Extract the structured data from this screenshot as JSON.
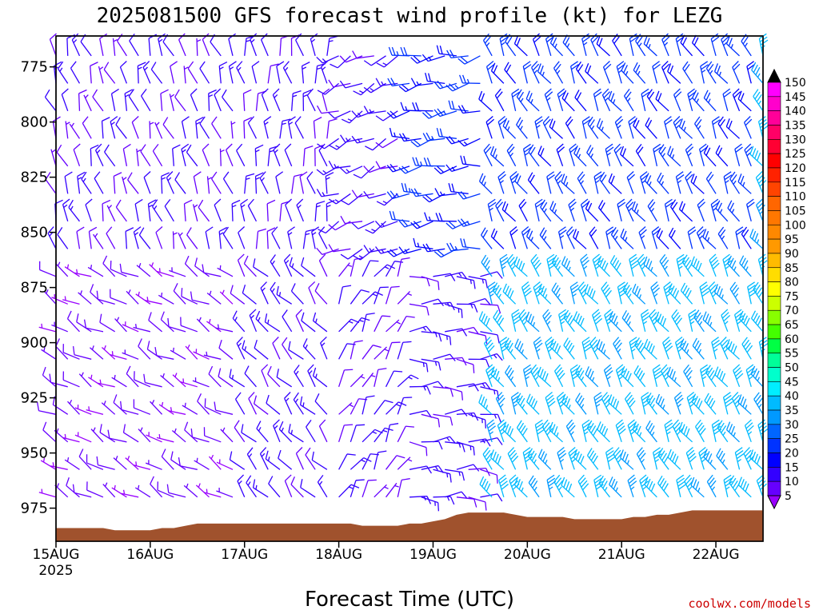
{
  "chart_data": {
    "type": "wind-barb-time-height",
    "title": "2025081500 GFS forecast wind profile (kt) for LEZG",
    "xlabel": "Forecast Time (UTC)",
    "credit": "coolwx.com/models",
    "x_ticks": [
      {
        "label": "15AUG",
        "sublabel": "2025",
        "day": 0
      },
      {
        "label": "16AUG",
        "sublabel": "",
        "day": 1
      },
      {
        "label": "17AUG",
        "sublabel": "",
        "day": 2
      },
      {
        "label": "18AUG",
        "sublabel": "",
        "day": 3
      },
      {
        "label": "19AUG",
        "sublabel": "",
        "day": 4
      },
      {
        "label": "20AUG",
        "sublabel": "",
        "day": 5
      },
      {
        "label": "21AUG",
        "sublabel": "",
        "day": 6
      },
      {
        "label": "22AUG",
        "sublabel": "",
        "day": 7
      }
    ],
    "xlim_days": [
      0,
      7.5
    ],
    "y_ticks": [
      775,
      800,
      825,
      850,
      875,
      900,
      925,
      950,
      975
    ],
    "ylim_hPa": [
      990,
      761
    ],
    "time_step_hours": 3,
    "pressure_levels": [
      770,
      782.5,
      795,
      807.5,
      820,
      832.5,
      845,
      857.5,
      870,
      882.5,
      895,
      907.5,
      920,
      932.5,
      945,
      957.5,
      970
    ],
    "terrain_surface_hPa": [
      984,
      984,
      984,
      984,
      984,
      985,
      985,
      985,
      985,
      984,
      984,
      983,
      982,
      982,
      982,
      982,
      982,
      982,
      982,
      982,
      982,
      982,
      982,
      982,
      982,
      982,
      983,
      983,
      983,
      983,
      982,
      982,
      981,
      980,
      978,
      977,
      977,
      977,
      977,
      978,
      979,
      979,
      979,
      979,
      980,
      980,
      980,
      980,
      980,
      979,
      979,
      978,
      978,
      977,
      976,
      976,
      976,
      976,
      976,
      976,
      976,
      976,
      976,
      976,
      976,
      976,
      976,
      976,
      975,
      973,
      972,
      973,
      975,
      976,
      976,
      976,
      976,
      976,
      976,
      976,
      976,
      976,
      976,
      975,
      976,
      976,
      976,
      976,
      976,
      976,
      976,
      975,
      974,
      974,
      974,
      975,
      976,
      977,
      978,
      978,
      978,
      978,
      978,
      978,
      978,
      978,
      978,
      978,
      978,
      978,
      978,
      978,
      978,
      978,
      978,
      978,
      978,
      978,
      978,
      978,
      977,
      977,
      978,
      978,
      978,
      978,
      978,
      978,
      978,
      978,
      978,
      978,
      978,
      978,
      978,
      978,
      978,
      978,
      978,
      978,
      978,
      978,
      978,
      978,
      978,
      978,
      978,
      978,
      978,
      978,
      978,
      978,
      978,
      978,
      978,
      978,
      978
    ],
    "regimes": [
      {
        "from_day": 0.0,
        "to_day": 2.0,
        "level_group": "upper",
        "direction_deg": 340,
        "speed_kt": 10
      },
      {
        "from_day": 0.0,
        "to_day": 2.0,
        "level_group": "lower",
        "direction_deg": 300,
        "speed_kt": 7
      },
      {
        "from_day": 2.0,
        "to_day": 3.0,
        "level_group": "upper",
        "direction_deg": 350,
        "speed_kt": 12
      },
      {
        "from_day": 2.0,
        "to_day": 3.0,
        "level_group": "lower",
        "direction_deg": 320,
        "speed_kt": 12
      },
      {
        "from_day": 3.0,
        "to_day": 3.75,
        "level_group": "upper",
        "direction_deg": 245,
        "speed_kt": 12
      },
      {
        "from_day": 3.0,
        "to_day": 3.75,
        "level_group": "lower",
        "direction_deg": 30,
        "speed_kt": 10
      },
      {
        "from_day": 3.75,
        "to_day": 4.6,
        "level_group": "upper",
        "direction_deg": 260,
        "speed_kt": 20
      },
      {
        "from_day": 3.75,
        "to_day": 4.6,
        "level_group": "lower",
        "direction_deg": 90,
        "speed_kt": 12
      },
      {
        "from_day": 4.6,
        "to_day": 7.5,
        "level_group": "upper",
        "direction_deg": 330,
        "speed_kt": 22
      },
      {
        "from_day": 4.6,
        "to_day": 7.5,
        "level_group": "lower",
        "direction_deg": 330,
        "speed_kt": 37
      }
    ],
    "colorbar": {
      "min": 5,
      "max": 150,
      "step": 5,
      "labels": [
        150,
        145,
        140,
        135,
        130,
        125,
        120,
        115,
        110,
        105,
        100,
        95,
        90,
        85,
        80,
        75,
        70,
        65,
        60,
        55,
        50,
        45,
        40,
        35,
        30,
        25,
        20,
        15,
        10,
        5
      ],
      "colors": [
        "#000000",
        "#ff00ff",
        "#ff00cc",
        "#ff0099",
        "#ff0066",
        "#ff0033",
        "#ff0000",
        "#ff2200",
        "#ff4400",
        "#ff6600",
        "#ff7700",
        "#ff8800",
        "#ff9900",
        "#ffbb00",
        "#ffdd00",
        "#ffff00",
        "#ccff00",
        "#88ff00",
        "#44ff00",
        "#00ff44",
        "#00ff99",
        "#00ffcc",
        "#00eeff",
        "#00bbff",
        "#0099ff",
        "#0066ff",
        "#0033ff",
        "#0000ff",
        "#3300ff",
        "#6600ff",
        "#9900ff"
      ]
    },
    "terrain_color": "#a0522d",
    "grid": false
  }
}
